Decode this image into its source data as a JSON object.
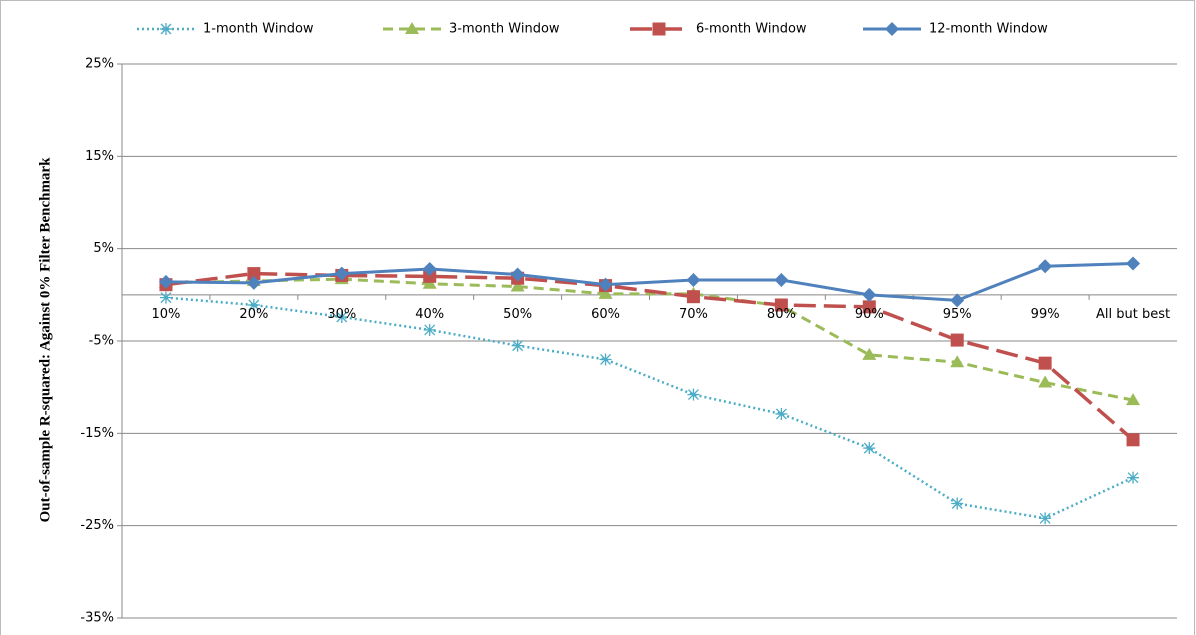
{
  "chart_data": {
    "type": "line",
    "y_label": "Out-of-sample R-squared: Against 0% Filter Benchmark",
    "categories": [
      "10%",
      "20%",
      "30%",
      "40%",
      "50%",
      "60%",
      "70%",
      "80%",
      "90%",
      "95%",
      "99%",
      "All but best"
    ],
    "ylim": [
      -35,
      25
    ],
    "yticks": [
      {
        "value": 25,
        "label": "25%"
      },
      {
        "value": 15,
        "label": "15%"
      },
      {
        "value": 5,
        "label": "5%"
      },
      {
        "value": -5,
        "label": "-5%"
      },
      {
        "value": -15,
        "label": "-15%"
      },
      {
        "value": -25,
        "label": "-25%"
      },
      {
        "value": -35,
        "label": "-35%"
      }
    ],
    "grid": true,
    "legend": "top",
    "series": [
      {
        "name": "1-month Window",
        "color": "#4bacc6",
        "marker": "asterisk",
        "line_style": "dotted",
        "values": [
          -0.3,
          -1.1,
          -2.4,
          -3.8,
          -5.5,
          -7.0,
          -10.8,
          -12.9,
          -16.6,
          -22.6,
          -24.2,
          -19.8
        ]
      },
      {
        "name": "3-month Window",
        "color": "#9bbb59",
        "marker": "triangle",
        "line_style": "dashed",
        "values": [
          1.3,
          1.5,
          1.7,
          1.2,
          0.9,
          0.1,
          0.1,
          -1.2,
          -6.5,
          -7.3,
          -9.5,
          -11.4
        ]
      },
      {
        "name": "6-month Window",
        "color": "#c0504d",
        "marker": "square",
        "line_style": "long-dashed",
        "values": [
          1.1,
          2.3,
          2.1,
          2.0,
          1.8,
          1.0,
          -0.2,
          -1.1,
          -1.3,
          -4.9,
          -7.4,
          -15.7
        ]
      },
      {
        "name": "12-month Window",
        "color": "#4f81bd",
        "marker": "diamond",
        "line_style": "solid",
        "values": [
          1.4,
          1.3,
          2.3,
          2.8,
          2.2,
          1.1,
          1.6,
          1.6,
          0.0,
          -0.6,
          3.1,
          3.4
        ]
      }
    ]
  }
}
